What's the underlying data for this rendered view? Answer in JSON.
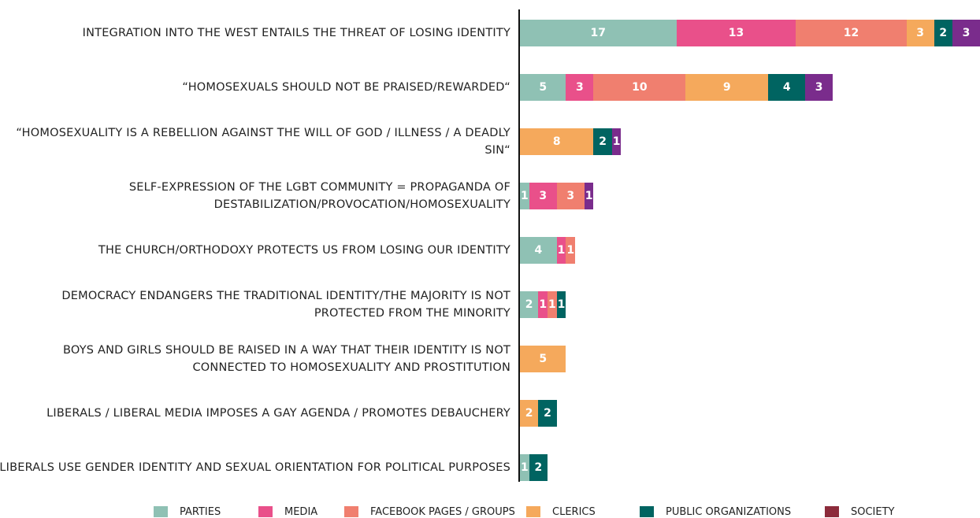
{
  "chart_data": {
    "type": "stacked-bar-horizontal",
    "categories": [
      "INTEGRATION INTO THE WEST ENTAILS THE THREAT OF LOSING IDENTITY",
      "“HOMOSEXUALS SHOULD NOT BE PRAISED/REWARDED“",
      "“HOMOSEXUALITY IS A REBELLION AGAINST THE WILL OF GOD / ILLNESS / A DEADLY SIN“",
      "SELF-EXPRESSION OF THE LGBT COMMUNITY = PROPAGANDA OF DESTABILIZATION/PROVOCATION/HOMOSEXUALITY",
      "THE CHURCH/ORTHODOXY PROTECTS US FROM LOSING OUR IDENTITY",
      "DEMOCRACY ENDANGERS THE TRADITIONAL IDENTITY/THE MAJORITY IS NOT PROTECTED FROM THE MINORITY",
      "BOYS AND GIRLS SHOULD BE RAISED IN A WAY THAT THEIR IDENTITY IS NOT CONNECTED TO HOMOSEXUALITY AND PROSTITUTION",
      "LIBERALS / LIBERAL MEDIA IMPOSES A GAY AGENDA / PROMOTES DEBAUCHERY",
      "LIBERALS USE GENDER IDENTITY AND SEXUAL ORIENTATION FOR POLITICAL PURPOSES"
    ],
    "series": [
      {
        "name": "PARTIES",
        "color": "#8fc1b4",
        "values": [
          17,
          5,
          null,
          1,
          4,
          2,
          null,
          null,
          1
        ]
      },
      {
        "name": "MEDIA",
        "color": "#e9508a",
        "values": [
          13,
          3,
          null,
          3,
          1,
          1,
          null,
          null,
          null
        ]
      },
      {
        "name": "FACEBOOK PAGES / GROUPS",
        "color": "#f07f6f",
        "values": [
          12,
          10,
          null,
          3,
          1,
          1,
          null,
          null,
          null
        ]
      },
      {
        "name": "CLERICS",
        "color": "#f5a95c",
        "values": [
          3,
          9,
          8,
          null,
          null,
          null,
          5,
          2,
          null
        ]
      },
      {
        "name": "PUBLIC ORGANIZATIONS",
        "color": "#006461",
        "values": [
          2,
          4,
          2,
          null,
          null,
          1,
          null,
          2,
          2
        ]
      },
      {
        "name": "SOCIETY",
        "color": "#8c2b3b",
        "values": [
          null,
          null,
          null,
          null,
          null,
          null,
          null,
          null,
          null
        ]
      },
      {
        "color": "#7a2c8c",
        "values": [
          3,
          3,
          1,
          1,
          null,
          null,
          null,
          null,
          null
        ]
      }
    ]
  }
}
